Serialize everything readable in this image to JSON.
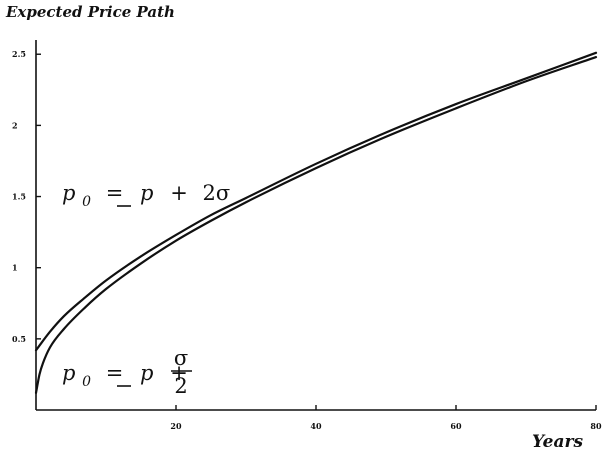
{
  "chart_data": {
    "type": "line",
    "title": "Expected Price Path",
    "xlabel": "Years",
    "ylabel": "",
    "xlim": [
      0,
      80
    ],
    "ylim": [
      0,
      2.6
    ],
    "xticks": [
      20,
      40,
      60,
      80
    ],
    "xtick_labels": [
      "20",
      "40",
      "60",
      "80"
    ],
    "yticks": [
      0.5,
      1,
      1.5,
      2,
      2.5
    ],
    "ytick_labels": [
      "0.5",
      "1",
      "1.5",
      "2",
      "2.5"
    ],
    "grid": false,
    "series": [
      {
        "x": [
          0,
          2,
          4,
          7,
          10,
          15,
          20,
          25,
          30,
          40,
          50,
          60,
          70,
          80
        ],
        "y": [
          0.42,
          0.55,
          0.66,
          0.79,
          0.91,
          1.08,
          1.23,
          1.37,
          1.49,
          1.73,
          1.95,
          2.15,
          2.33,
          2.51
        ]
      },
      {
        "x": [
          0,
          0.5,
          1,
          2,
          4,
          7,
          10,
          15,
          20,
          25,
          30,
          40,
          50,
          60,
          70,
          80
        ],
        "y": [
          0.12,
          0.25,
          0.33,
          0.44,
          0.57,
          0.72,
          0.85,
          1.03,
          1.19,
          1.33,
          1.46,
          1.7,
          1.92,
          2.12,
          2.31,
          2.48
        ]
      }
    ],
    "annotations": [
      {
        "id": "upper",
        "lhs": "p",
        "lhs_sub": "0",
        "eq": "=",
        "rhs_var": "p",
        "plus": "+",
        "rhs_term": "2σ"
      },
      {
        "id": "lower",
        "lhs": "p",
        "lhs_sub": "0",
        "eq": "=",
        "rhs_var": "p",
        "plus": "+",
        "frac_num": "σ",
        "frac_den": "2"
      }
    ]
  }
}
